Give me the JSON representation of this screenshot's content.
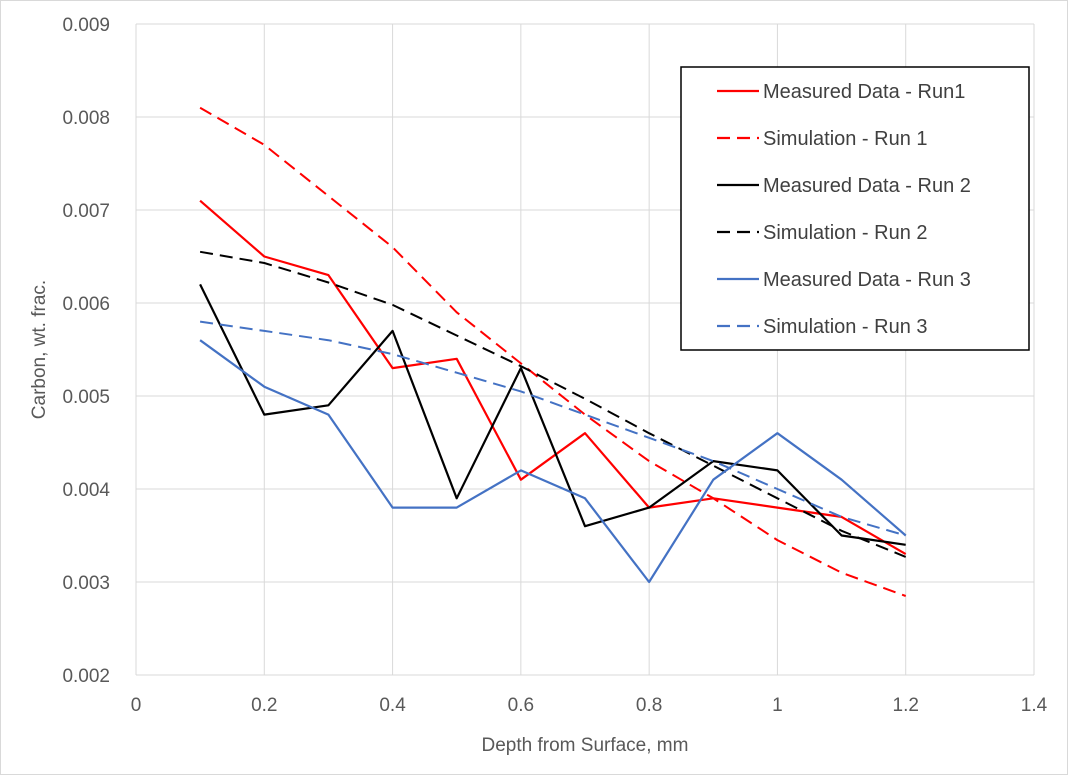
{
  "chart_data": {
    "type": "line",
    "title": "",
    "xlabel": "Depth from Surface, mm",
    "ylabel": "Carbon, wt. frac.",
    "xlim": [
      0,
      1.4
    ],
    "ylim": [
      0.002,
      0.009
    ],
    "x_ticks": [
      "0",
      "0.2",
      "0.4",
      "0.6",
      "0.8",
      "1",
      "1.2",
      "1.4"
    ],
    "x_tick_values": [
      0,
      0.2,
      0.4,
      0.6,
      0.8,
      1.0,
      1.2,
      1.4
    ],
    "y_ticks": [
      "0.002",
      "0.003",
      "0.004",
      "0.005",
      "0.006",
      "0.007",
      "0.008",
      "0.009"
    ],
    "y_tick_values": [
      0.002,
      0.003,
      0.004,
      0.005,
      0.006,
      0.007,
      0.008,
      0.009
    ],
    "grid": "vertical-and-horizontal",
    "legend_position": "top-right",
    "series": [
      {
        "name": "Measured Data - Run1",
        "color": "#ff0000",
        "dashed": false,
        "x": [
          0.1,
          0.2,
          0.3,
          0.4,
          0.5,
          0.6,
          0.7,
          0.8,
          0.9,
          1.0,
          1.1,
          1.2
        ],
        "values": [
          0.0071,
          0.0065,
          0.0063,
          0.0053,
          0.0054,
          0.0041,
          0.0046,
          0.0038,
          0.0039,
          0.0038,
          0.0037,
          0.0033
        ]
      },
      {
        "name": "Simulation - Run 1",
        "color": "#ff0000",
        "dashed": true,
        "x": [
          0.1,
          0.15,
          0.2,
          0.3,
          0.4,
          0.5,
          0.6,
          0.7,
          0.8,
          0.9,
          1.0,
          1.1,
          1.2
        ],
        "values": [
          0.0081,
          0.0079,
          0.0077,
          0.00715,
          0.0066,
          0.0059,
          0.00535,
          0.0048,
          0.0043,
          0.0039,
          0.00345,
          0.0031,
          0.00285
        ]
      },
      {
        "name": "Measured Data - Run 2",
        "color": "#000000",
        "dashed": false,
        "x": [
          0.1,
          0.2,
          0.3,
          0.4,
          0.5,
          0.6,
          0.7,
          0.8,
          0.9,
          1.0,
          1.1,
          1.2
        ],
        "values": [
          0.0062,
          0.0048,
          0.0049,
          0.0057,
          0.0039,
          0.0053,
          0.0036,
          0.0038,
          0.0043,
          0.0042,
          0.0035,
          0.0034
        ]
      },
      {
        "name": "Simulation - Run 2",
        "color": "#000000",
        "dashed": true,
        "x": [
          0.1,
          0.2,
          0.3,
          0.4,
          0.5,
          0.6,
          0.7,
          0.8,
          0.9,
          1.0,
          1.1,
          1.2
        ],
        "values": [
          0.00655,
          0.00643,
          0.00622,
          0.00598,
          0.00565,
          0.00532,
          0.00497,
          0.0046,
          0.00425,
          0.0039,
          0.00355,
          0.00327
        ]
      },
      {
        "name": "Measured Data - Run 3",
        "color": "#4472c4",
        "dashed": false,
        "x": [
          0.1,
          0.2,
          0.3,
          0.4,
          0.5,
          0.6,
          0.7,
          0.8,
          0.9,
          1.0,
          1.1,
          1.2
        ],
        "values": [
          0.0056,
          0.0051,
          0.0048,
          0.0038,
          0.0038,
          0.0042,
          0.0039,
          0.003,
          0.0041,
          0.0046,
          0.0041,
          0.0035
        ]
      },
      {
        "name": "Simulation - Run 3",
        "color": "#4472c4",
        "dashed": true,
        "x": [
          0.1,
          0.2,
          0.3,
          0.4,
          0.5,
          0.6,
          0.7,
          0.8,
          0.9,
          1.0,
          1.1,
          1.2
        ],
        "values": [
          0.0058,
          0.0057,
          0.0056,
          0.00545,
          0.00525,
          0.00505,
          0.0048,
          0.00455,
          0.0043,
          0.004,
          0.0037,
          0.0035
        ]
      }
    ]
  }
}
